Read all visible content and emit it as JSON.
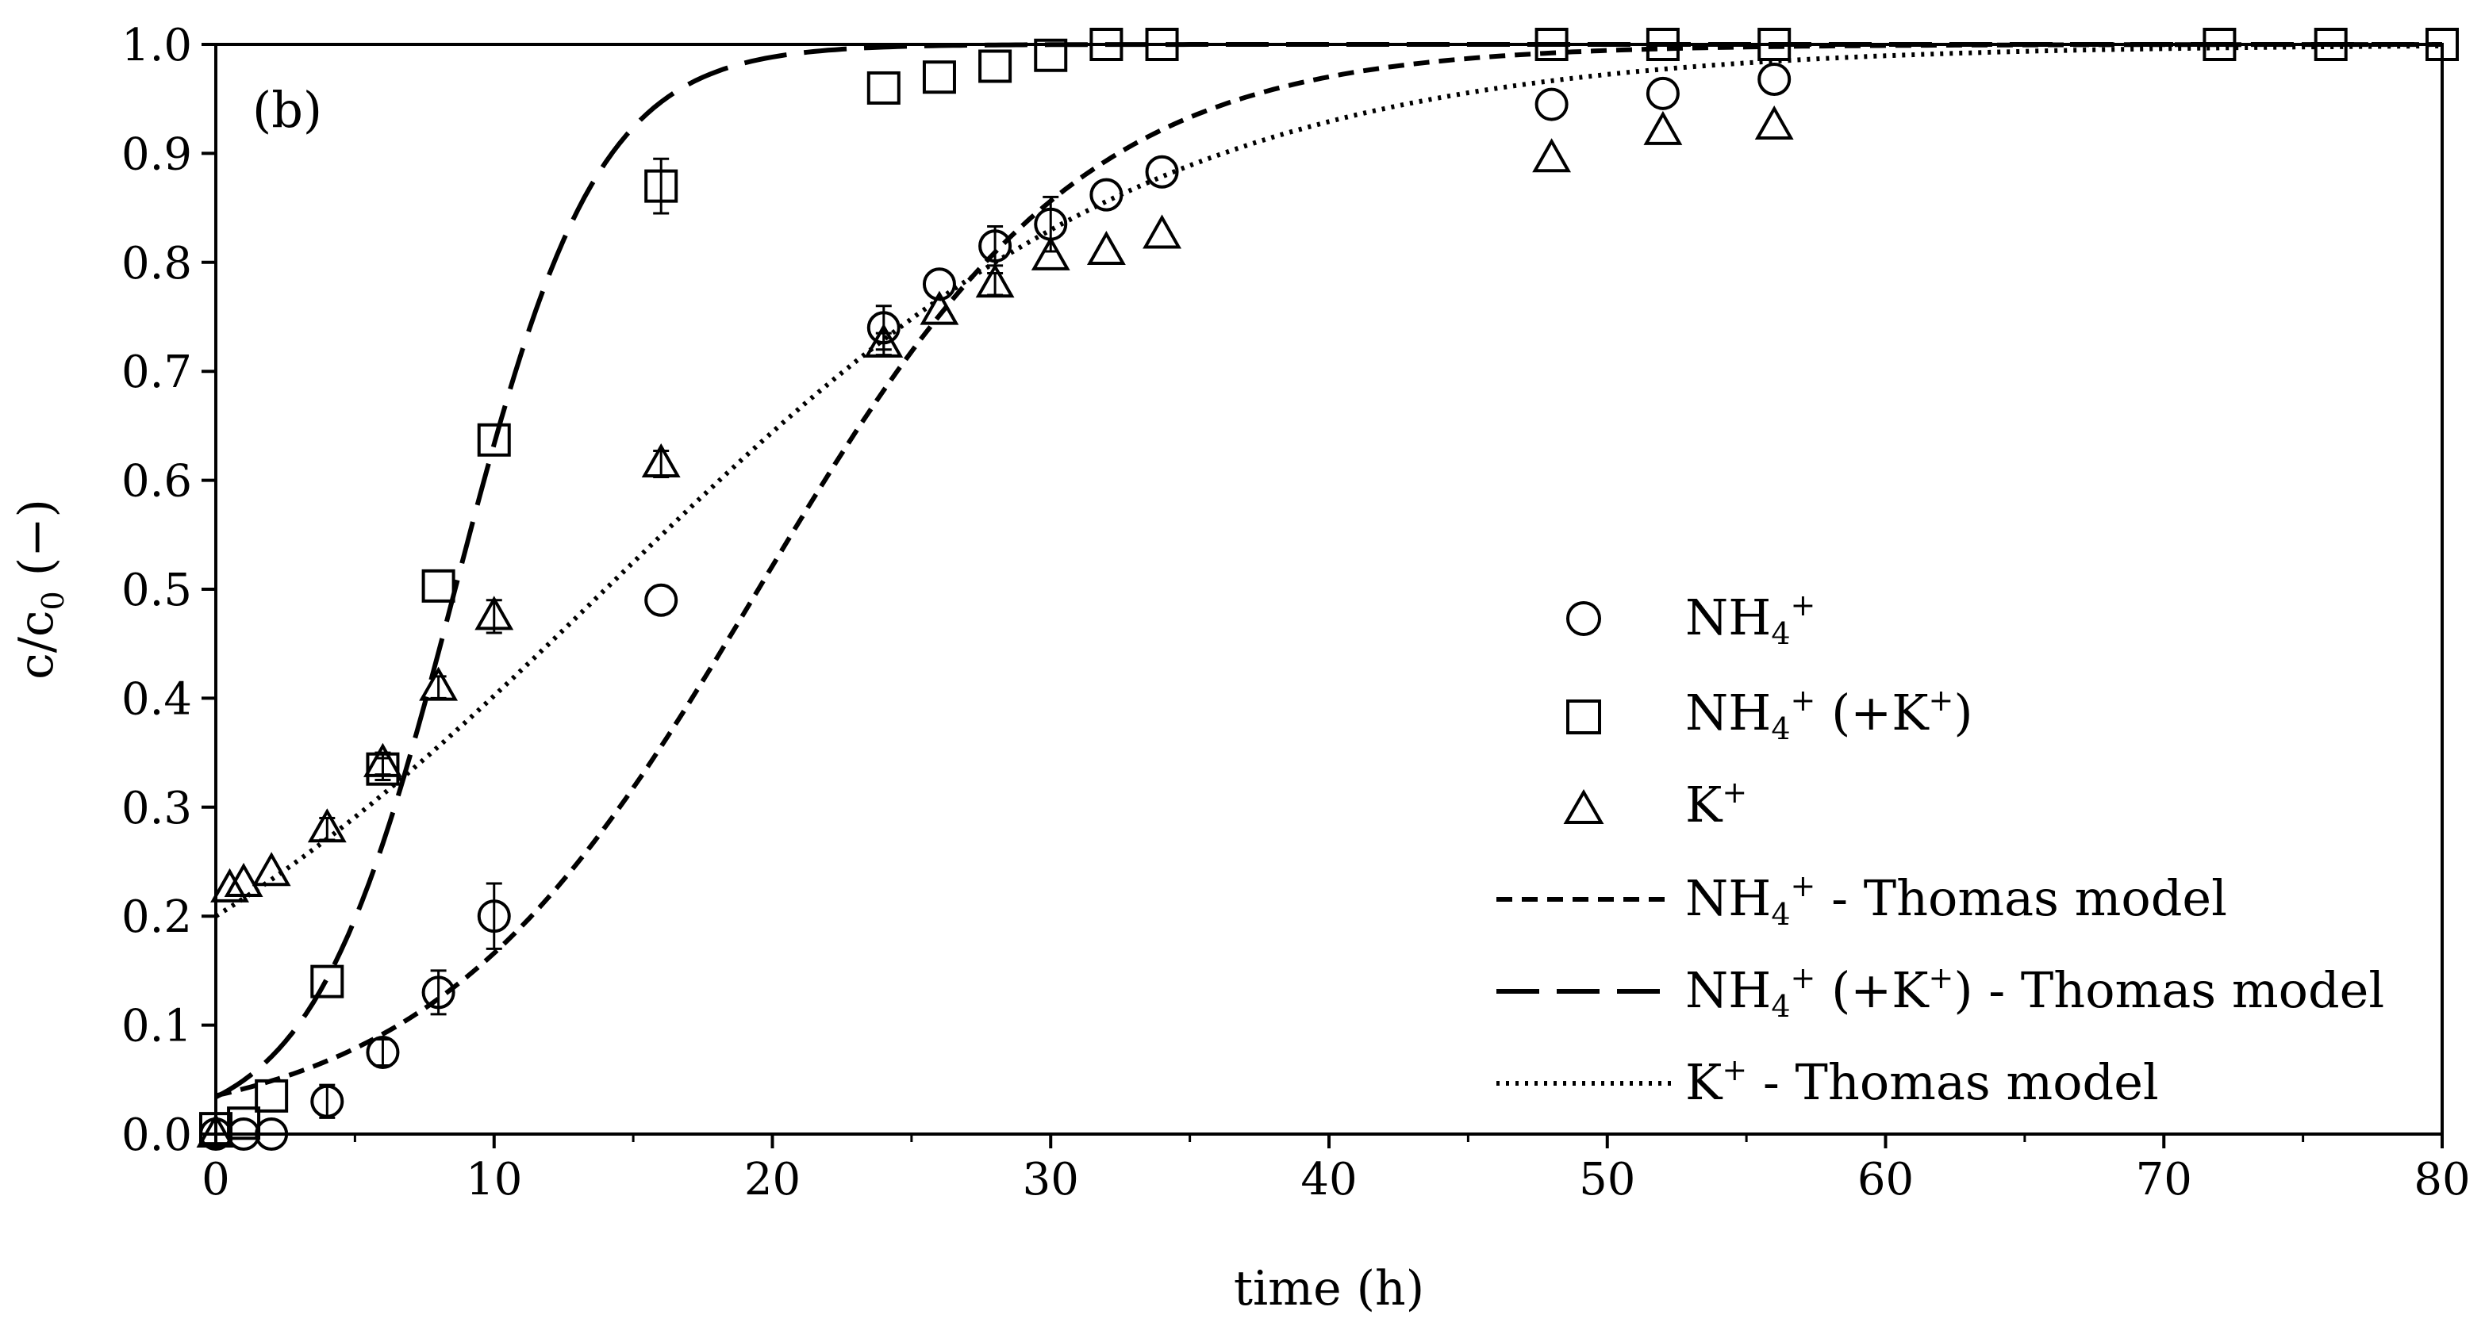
{
  "chart_data": {
    "type": "scatter",
    "panel_label": "(b)",
    "xlabel": "time (h)",
    "ylabel": "c/c",
    "ylabel_subscript": "0",
    "ylabel_suffix": " (−)",
    "xlim": [
      0,
      80
    ],
    "ylim": [
      0,
      1.0
    ],
    "x_ticks": [
      "0",
      "10",
      "20",
      "30",
      "40",
      "50",
      "60",
      "70",
      "80"
    ],
    "y_ticks": [
      "0.0",
      "0.1",
      "0.2",
      "0.3",
      "0.4",
      "0.5",
      "0.6",
      "0.7",
      "0.8",
      "0.9",
      "1.0"
    ],
    "grid": false,
    "legend_position": "right-center",
    "legend": [
      {
        "marker": "circle",
        "label_main": "NH",
        "sub": "4",
        "sup": "+",
        "label_tail": ""
      },
      {
        "marker": "square",
        "label_main": "NH",
        "sub": "4",
        "sup": "+",
        "label_tail": " (+K",
        "sup2": "+",
        "tail2": ")"
      },
      {
        "marker": "triangle",
        "label_main": "K",
        "sub": "",
        "sup": "+",
        "label_tail": ""
      },
      {
        "line": "short-dash",
        "label_main": "NH",
        "sub": "4",
        "sup": "+",
        "label_tail": " - Thomas model"
      },
      {
        "line": "long-dash",
        "label_main": "NH",
        "sub": "4",
        "sup": "+",
        "label_tail": " (+K",
        "sup2": "+",
        "tail2": ") - Thomas model"
      },
      {
        "line": "dotted",
        "label_main": "K",
        "sub": "",
        "sup": "+",
        "label_tail": " - Thomas model"
      }
    ],
    "series": [
      {
        "name": "NH4+",
        "marker": "circle",
        "points": [
          {
            "x": 0,
            "y": 0.0,
            "err": 0.0
          },
          {
            "x": 1,
            "y": 0.0,
            "err": 0.0
          },
          {
            "x": 2,
            "y": 0.0,
            "err": 0.0
          },
          {
            "x": 4,
            "y": 0.03,
            "err": 0.015
          },
          {
            "x": 6,
            "y": 0.075,
            "err": 0.012
          },
          {
            "x": 8,
            "y": 0.13,
            "err": 0.02
          },
          {
            "x": 10,
            "y": 0.2,
            "err": 0.03
          },
          {
            "x": 16,
            "y": 0.49,
            "err": 0.0
          },
          {
            "x": 24,
            "y": 0.74,
            "err": 0.02
          },
          {
            "x": 26,
            "y": 0.78,
            "err": 0.0
          },
          {
            "x": 28,
            "y": 0.815,
            "err": 0.018
          },
          {
            "x": 30,
            "y": 0.835,
            "err": 0.025
          },
          {
            "x": 32,
            "y": 0.862,
            "err": 0.0
          },
          {
            "x": 34,
            "y": 0.883,
            "err": 0.0
          },
          {
            "x": 48,
            "y": 0.945,
            "err": 0.0
          },
          {
            "x": 52,
            "y": 0.955,
            "err": 0.0
          },
          {
            "x": 56,
            "y": 0.968,
            "err": 0.0
          }
        ]
      },
      {
        "name": "NH4+ (+K+)",
        "marker": "square",
        "points": [
          {
            "x": 0,
            "y": 0.005,
            "err": 0.0
          },
          {
            "x": 1,
            "y": 0.01,
            "err": 0.0
          },
          {
            "x": 2,
            "y": 0.035,
            "err": 0.0
          },
          {
            "x": 4,
            "y": 0.14,
            "err": 0.0
          },
          {
            "x": 6,
            "y": 0.335,
            "err": 0.01
          },
          {
            "x": 8,
            "y": 0.503,
            "err": 0.0
          },
          {
            "x": 10,
            "y": 0.637,
            "err": 0.0
          },
          {
            "x": 16,
            "y": 0.87,
            "err": 0.025
          },
          {
            "x": 24,
            "y": 0.96,
            "err": 0.0
          },
          {
            "x": 26,
            "y": 0.97,
            "err": 0.0
          },
          {
            "x": 28,
            "y": 0.98,
            "err": 0.0
          },
          {
            "x": 30,
            "y": 0.99,
            "err": 0.0
          },
          {
            "x": 32,
            "y": 1.0,
            "err": 0.0
          },
          {
            "x": 34,
            "y": 1.0,
            "err": 0.0
          },
          {
            "x": 48,
            "y": 1.0,
            "err": 0.0
          },
          {
            "x": 52,
            "y": 1.0,
            "err": 0.0
          },
          {
            "x": 56,
            "y": 1.0,
            "err": 0.0
          },
          {
            "x": 72,
            "y": 1.0,
            "err": 0.0
          },
          {
            "x": 76,
            "y": 1.0,
            "err": 0.0
          },
          {
            "x": 80,
            "y": 1.0,
            "err": 0.0
          }
        ]
      },
      {
        "name": "K+",
        "marker": "triangle",
        "points": [
          {
            "x": 0,
            "y": 0.0,
            "err": 0.0
          },
          {
            "x": 0.5,
            "y": 0.225,
            "err": 0.0
          },
          {
            "x": 1,
            "y": 0.23,
            "err": 0.0
          },
          {
            "x": 2,
            "y": 0.24,
            "err": 0.0
          },
          {
            "x": 4,
            "y": 0.28,
            "err": 0.01
          },
          {
            "x": 6,
            "y": 0.34,
            "err": 0.01
          },
          {
            "x": 8,
            "y": 0.41,
            "err": 0.01
          },
          {
            "x": 10,
            "y": 0.475,
            "err": 0.015
          },
          {
            "x": 16,
            "y": 0.615,
            "err": 0.012
          },
          {
            "x": 24,
            "y": 0.725,
            "err": 0.01
          },
          {
            "x": 26,
            "y": 0.755,
            "err": 0.0
          },
          {
            "x": 28,
            "y": 0.78,
            "err": 0.01
          },
          {
            "x": 30,
            "y": 0.805,
            "err": 0.0
          },
          {
            "x": 32,
            "y": 0.81,
            "err": 0.0
          },
          {
            "x": 34,
            "y": 0.825,
            "err": 0.0
          },
          {
            "x": 48,
            "y": 0.895,
            "err": 0.0
          },
          {
            "x": 52,
            "y": 0.92,
            "err": 0.0
          },
          {
            "x": 56,
            "y": 0.925,
            "err": 0.0
          }
        ]
      }
    ],
    "models": [
      {
        "name": "NH4+ - Thomas model",
        "style": "short-dash",
        "x0": 0,
        "x1": 80,
        "y0": 0.0353,
        "k": 0.17,
        "t50": 19.5
      },
      {
        "name": "NH4+ (+K+) - Thomas model",
        "style": "long-dash",
        "x0": 0,
        "x1": 80,
        "y0": 0.034,
        "k": 0.39,
        "t50": 8.6
      },
      {
        "name": "K+ - Thomas model",
        "style": "dotted",
        "x0": 0,
        "x1": 80,
        "y0": 0.2,
        "k": 0.099,
        "t50": 14
      }
    ]
  }
}
